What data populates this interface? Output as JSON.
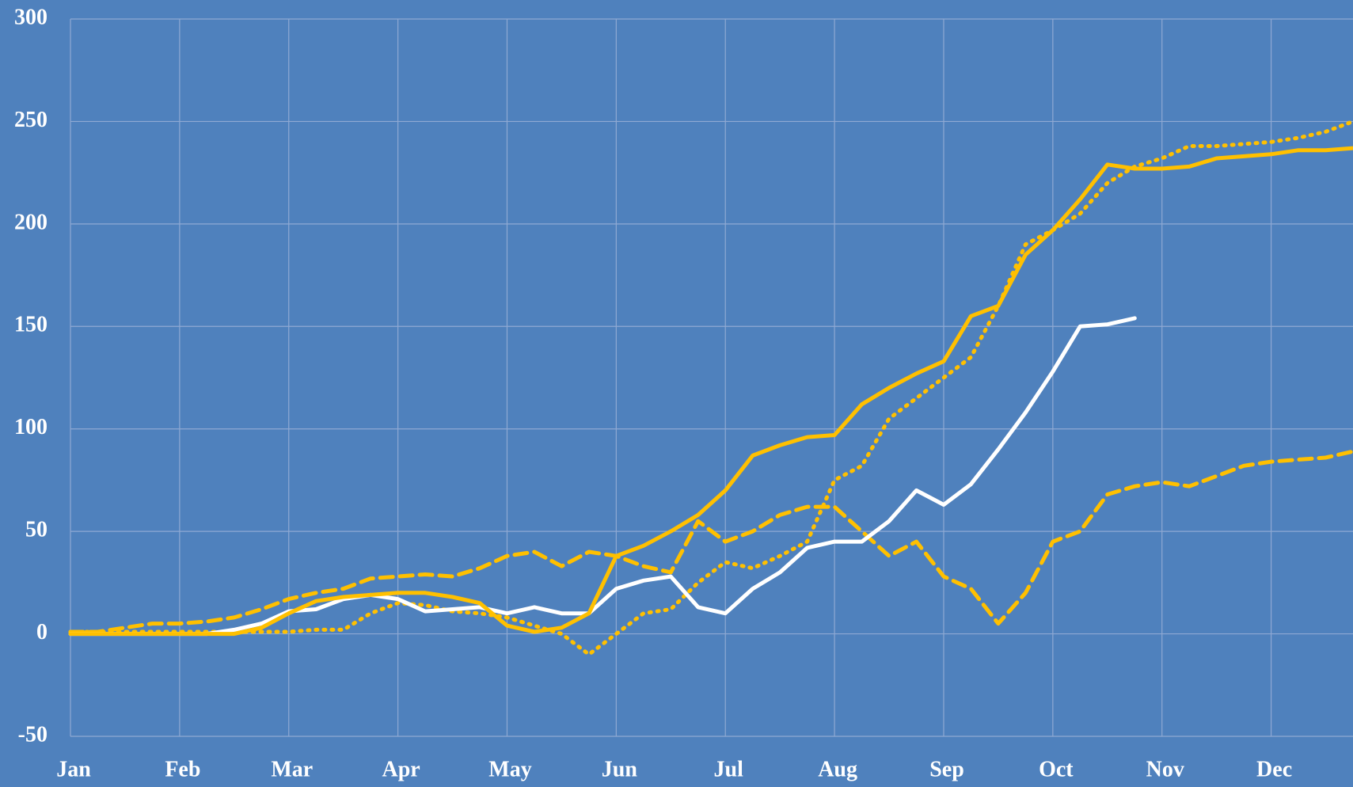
{
  "chart_data": {
    "type": "line",
    "categories": [
      "Jan",
      null,
      null,
      null,
      "Feb",
      null,
      null,
      null,
      "Mar",
      null,
      null,
      null,
      "Apr",
      null,
      null,
      null,
      "May",
      null,
      null,
      null,
      "Jun",
      null,
      null,
      null,
      "Jul",
      null,
      null,
      null,
      "Aug",
      null,
      null,
      null,
      "Sep",
      null,
      null,
      null,
      "Oct",
      null,
      null,
      null,
      "Nov",
      null,
      null,
      null,
      "Dec",
      null,
      null,
      null
    ],
    "series": [
      {
        "color": "#ffc000",
        "linestyle": "dotted",
        "values": [
          1,
          1,
          1,
          1,
          1,
          1,
          1,
          1,
          1,
          2,
          2,
          10,
          15,
          14,
          11,
          10,
          8,
          4,
          0,
          -10,
          0,
          10,
          12,
          25,
          35,
          32,
          38,
          45,
          75,
          82,
          105,
          115,
          125,
          135,
          160,
          190,
          197,
          205,
          220,
          228,
          232,
          238,
          238,
          239,
          240,
          242,
          245,
          250
        ]
      },
      {
        "color": "#ffc000",
        "linestyle": "dashed",
        "values": [
          1,
          1,
          3,
          5,
          5,
          6,
          8,
          12,
          17,
          20,
          22,
          27,
          28,
          29,
          28,
          32,
          38,
          40,
          33,
          40,
          38,
          33,
          30,
          55,
          45,
          50,
          58,
          62,
          62,
          50,
          38,
          45,
          28,
          22,
          5,
          20,
          45,
          50,
          68,
          72,
          74,
          72,
          77,
          82,
          84,
          85,
          86,
          89
        ]
      },
      {
        "color": "#ffffff",
        "linestyle": "solid",
        "values": [
          0,
          0,
          0,
          0,
          0,
          0,
          2,
          5,
          11,
          12,
          17,
          19,
          17,
          11,
          12,
          13,
          10,
          13,
          10,
          10,
          22,
          26,
          28,
          13,
          10,
          22,
          30,
          42,
          45,
          45,
          55,
          70,
          63,
          73,
          90,
          108,
          128,
          150,
          151,
          154,
          null,
          null,
          null,
          null,
          null,
          null,
          null,
          null
        ]
      },
      {
        "color": "#ffc000",
        "linestyle": "solid",
        "values": [
          0,
          0,
          0,
          0,
          0,
          0,
          0,
          3,
          10,
          16,
          18,
          19,
          20,
          20,
          18,
          15,
          4,
          1,
          3,
          10,
          38,
          43,
          50,
          58,
          70,
          87,
          92,
          96,
          97,
          112,
          120,
          127,
          133,
          155,
          160,
          185,
          197,
          212,
          229,
          227,
          227,
          228,
          232,
          233,
          234,
          236,
          236,
          237
        ]
      }
    ],
    "ylim": [
      -50,
      300
    ],
    "yticks": [
      -50,
      0,
      50,
      100,
      150,
      200,
      250,
      300
    ],
    "grid": true
  }
}
